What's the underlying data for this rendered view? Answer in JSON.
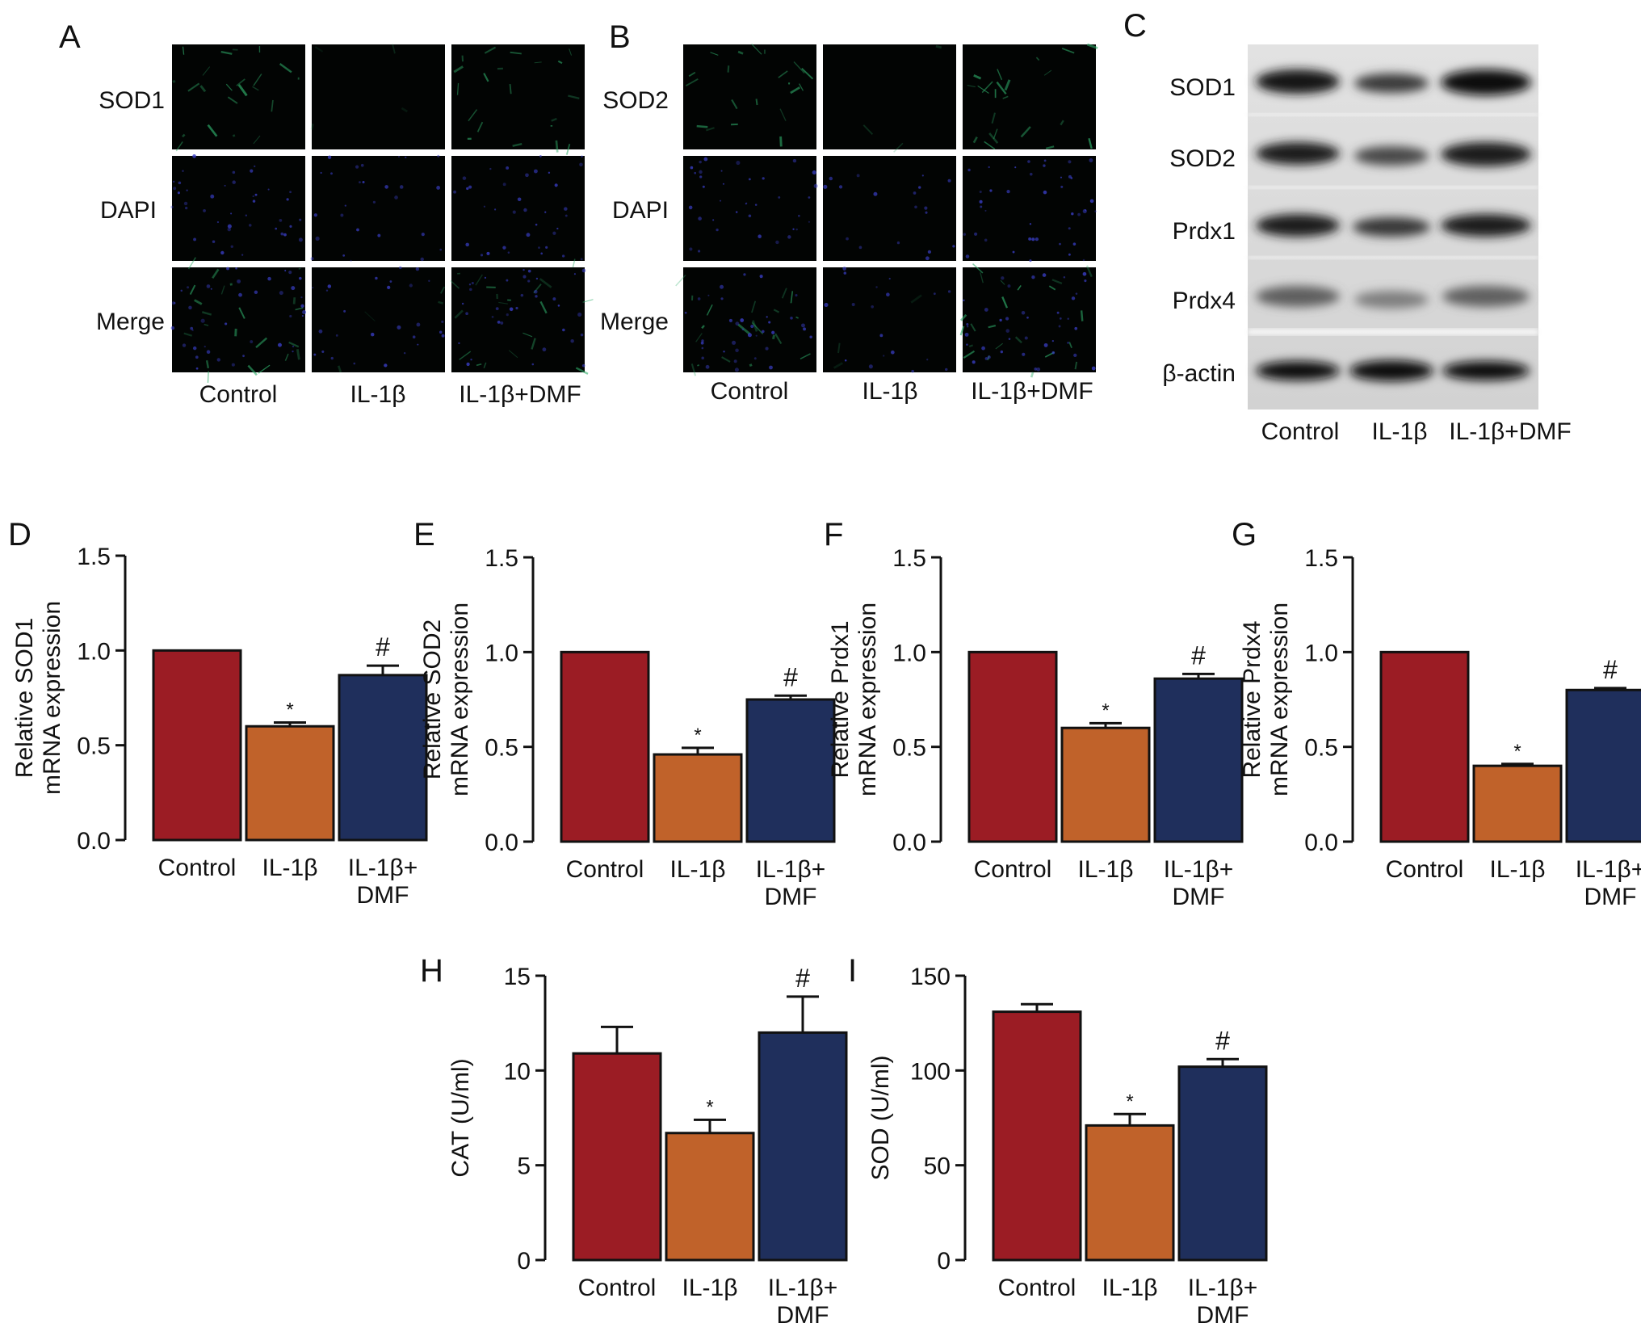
{
  "panels": {
    "A": {
      "letter": "A",
      "rows": [
        "SOD1",
        "DAPI",
        "Merge"
      ],
      "columns": [
        "Control",
        "IL-1β",
        "IL-1β+DMF"
      ]
    },
    "B": {
      "letter": "B",
      "rows": [
        "SOD2",
        "DAPI",
        "Merge"
      ],
      "columns": [
        "Control",
        "IL-1β",
        "IL-1β+DMF"
      ]
    },
    "C": {
      "letter": "C",
      "bands": [
        "SOD1",
        "SOD2",
        "Prdx1",
        "Prdx4",
        "β-actin"
      ],
      "columns": [
        "Control",
        "IL-1β",
        "IL-1β+DMF"
      ]
    }
  },
  "colors": {
    "control": "#9b1c24",
    "il1b": "#c0622a",
    "il1b_dmf": "#1f2f5c",
    "micro_green": "#2fae6a",
    "micro_blue": "#3a3fc8"
  },
  "chart_data": [
    {
      "id": "D",
      "letter": "D",
      "type": "bar",
      "categories": [
        "Control",
        "IL-1β",
        "IL-1β+\nDMF"
      ],
      "values": [
        1.0,
        0.6,
        0.87
      ],
      "errors": [
        0.0,
        0.02,
        0.05
      ],
      "marks": [
        "",
        "*",
        "#"
      ],
      "ylabel": [
        "Relative SOD1",
        "mRNA expression"
      ],
      "ylim": [
        0,
        1.5
      ],
      "yticks": [
        "0.0",
        "0.5",
        "1.0",
        "1.5"
      ],
      "ytick_values": [
        0,
        0.5,
        1.0,
        1.5
      ]
    },
    {
      "id": "E",
      "letter": "E",
      "type": "bar",
      "categories": [
        "Control",
        "IL-1β",
        "IL-1β+\nDMF"
      ],
      "values": [
        1.0,
        0.46,
        0.75
      ],
      "errors": [
        0.0,
        0.035,
        0.02
      ],
      "marks": [
        "",
        "*",
        "#"
      ],
      "ylabel": [
        "Relative SOD2",
        "mRNA expression"
      ],
      "ylim": [
        0,
        1.5
      ],
      "yticks": [
        "0.0",
        "0.5",
        "1.0",
        "1.5"
      ],
      "ytick_values": [
        0,
        0.5,
        1.0,
        1.5
      ]
    },
    {
      "id": "F",
      "letter": "F",
      "type": "bar",
      "categories": [
        "Control",
        "IL-1β",
        "IL-1β+\nDMF"
      ],
      "values": [
        1.0,
        0.6,
        0.86
      ],
      "errors": [
        0.0,
        0.025,
        0.025
      ],
      "marks": [
        "",
        "*",
        "#"
      ],
      "ylabel": [
        "Relative Prdx1",
        "mRNA expression"
      ],
      "ylim": [
        0,
        1.5
      ],
      "yticks": [
        "0.0",
        "0.5",
        "1.0",
        "1.5"
      ],
      "ytick_values": [
        0,
        0.5,
        1.0,
        1.5
      ]
    },
    {
      "id": "G",
      "letter": "G",
      "type": "bar",
      "categories": [
        "Control",
        "IL-1β",
        "IL-1β+\nDMF"
      ],
      "values": [
        1.0,
        0.4,
        0.8
      ],
      "errors": [
        0.0,
        0.01,
        0.01
      ],
      "marks": [
        "",
        "*",
        "#"
      ],
      "ylabel": [
        "Relative Prdx4",
        "mRNA expression"
      ],
      "ylim": [
        0,
        1.5
      ],
      "yticks": [
        "0.0",
        "0.5",
        "1.0",
        "1.5"
      ],
      "ytick_values": [
        0,
        0.5,
        1.0,
        1.5
      ]
    },
    {
      "id": "H",
      "letter": "H",
      "type": "bar",
      "categories": [
        "Control",
        "IL-1β",
        "IL-1β+\nDMF"
      ],
      "values": [
        10.9,
        6.7,
        12.0
      ],
      "errors": [
        1.4,
        0.7,
        1.9
      ],
      "marks": [
        "",
        "*",
        "#"
      ],
      "ylabel": [
        "CAT (U/ml)"
      ],
      "ylim": [
        0,
        15
      ],
      "yticks": [
        "0",
        "5",
        "10",
        "15"
      ],
      "ytick_values": [
        0,
        5,
        10,
        15
      ]
    },
    {
      "id": "I",
      "letter": "I",
      "type": "bar",
      "categories": [
        "Control",
        "IL-1β",
        "IL-1β+\nDMF"
      ],
      "values": [
        131,
        71,
        102
      ],
      "errors": [
        4,
        6,
        4
      ],
      "marks": [
        "",
        "*",
        "#"
      ],
      "ylabel": [
        "SOD (U/ml)"
      ],
      "ylim": [
        0,
        150
      ],
      "yticks": [
        "0",
        "50",
        "100",
        "150"
      ],
      "ytick_values": [
        0,
        50,
        100,
        150
      ]
    }
  ]
}
